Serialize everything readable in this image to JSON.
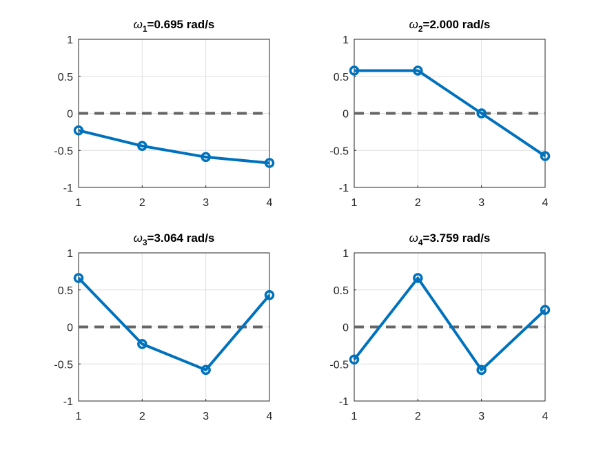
{
  "figure": {
    "background": "#ffffff",
    "line_color": "#0072bd",
    "zero_line_color": "#666666",
    "grid_color": "#dfdfdf",
    "axis_color": "#262626"
  },
  "chart_data": [
    {
      "type": "line",
      "title": "ω₁=0.695 rad/s",
      "title_symbol": "ω",
      "title_sub": "1",
      "title_rest": "=0.695 rad/s",
      "x": [
        1,
        2,
        3,
        4
      ],
      "series": [
        {
          "values": [
            -0.23,
            -0.44,
            -0.59,
            -0.67
          ]
        }
      ],
      "reference_line": 0,
      "xlim": [
        1,
        4
      ],
      "ylim": [
        -1,
        1
      ],
      "xticks": [
        "1",
        "2",
        "3",
        "4"
      ],
      "yticks": [
        "1",
        "0.5",
        "0",
        "-0.5",
        "-1"
      ],
      "grid": true
    },
    {
      "type": "line",
      "title": "ω₂=2.000 rad/s",
      "title_symbol": "ω",
      "title_sub": "2",
      "title_rest": "=2.000 rad/s",
      "x": [
        1,
        2,
        3,
        4
      ],
      "series": [
        {
          "values": [
            0.577,
            0.577,
            0.0,
            -0.577
          ]
        }
      ],
      "reference_line": 0,
      "xlim": [
        1,
        4
      ],
      "ylim": [
        -1,
        1
      ],
      "xticks": [
        "1",
        "2",
        "3",
        "4"
      ],
      "yticks": [
        "1",
        "0.5",
        "0",
        "-0.5",
        "-1"
      ],
      "grid": true
    },
    {
      "type": "line",
      "title": "ω₃=3.064 rad/s",
      "title_symbol": "ω",
      "title_sub": "3",
      "title_rest": "=3.064 rad/s",
      "x": [
        1,
        2,
        3,
        4
      ],
      "series": [
        {
          "values": [
            0.66,
            -0.23,
            -0.58,
            0.43
          ]
        }
      ],
      "reference_line": 0,
      "xlim": [
        1,
        4
      ],
      "ylim": [
        -1,
        1
      ],
      "xticks": [
        "1",
        "2",
        "3",
        "4"
      ],
      "yticks": [
        "1",
        "0.5",
        "0",
        "-0.5",
        "-1"
      ],
      "grid": true
    },
    {
      "type": "line",
      "title": "ω₄=3.759 rad/s",
      "title_symbol": "ω",
      "title_sub": "4",
      "title_rest": "=3.759 rad/s",
      "x": [
        1,
        2,
        3,
        4
      ],
      "series": [
        {
          "values": [
            -0.44,
            0.66,
            -0.58,
            0.23
          ]
        }
      ],
      "reference_line": 0,
      "xlim": [
        1,
        4
      ],
      "ylim": [
        -1,
        1
      ],
      "xticks": [
        "1",
        "2",
        "3",
        "4"
      ],
      "yticks": [
        "1",
        "0.5",
        "0",
        "-0.5",
        "-1"
      ],
      "grid": true
    }
  ]
}
